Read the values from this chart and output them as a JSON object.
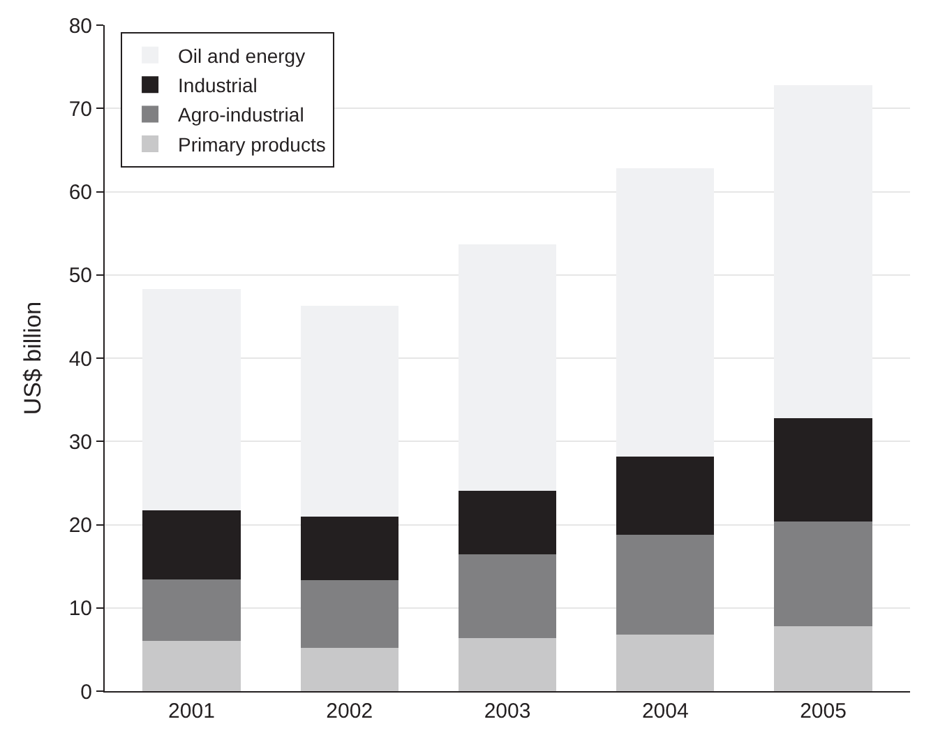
{
  "chart_data": {
    "type": "bar",
    "stacked": true,
    "ylabel": "US$ billion",
    "categories": [
      "2001",
      "2002",
      "2003",
      "2004",
      "2005"
    ],
    "series": [
      {
        "name": "Primary products",
        "color": "#c8c8c9",
        "values": [
          6.0,
          5.2,
          6.4,
          6.8,
          7.8
        ]
      },
      {
        "name": "Agro-industrial",
        "color": "#808082",
        "values": [
          7.4,
          8.1,
          10.0,
          12.0,
          12.6
        ]
      },
      {
        "name": "Industrial",
        "color": "#231f20",
        "values": [
          8.3,
          7.7,
          7.7,
          9.4,
          12.4
        ]
      },
      {
        "name": "Oil and energy",
        "color": "#f0f1f3",
        "values": [
          26.6,
          25.3,
          29.6,
          34.6,
          40.0
        ]
      }
    ],
    "ylim": [
      0,
      80
    ],
    "yticks": [
      0,
      10,
      20,
      30,
      40,
      50,
      60,
      70,
      80
    ],
    "grid": "y",
    "legend": "top left"
  }
}
